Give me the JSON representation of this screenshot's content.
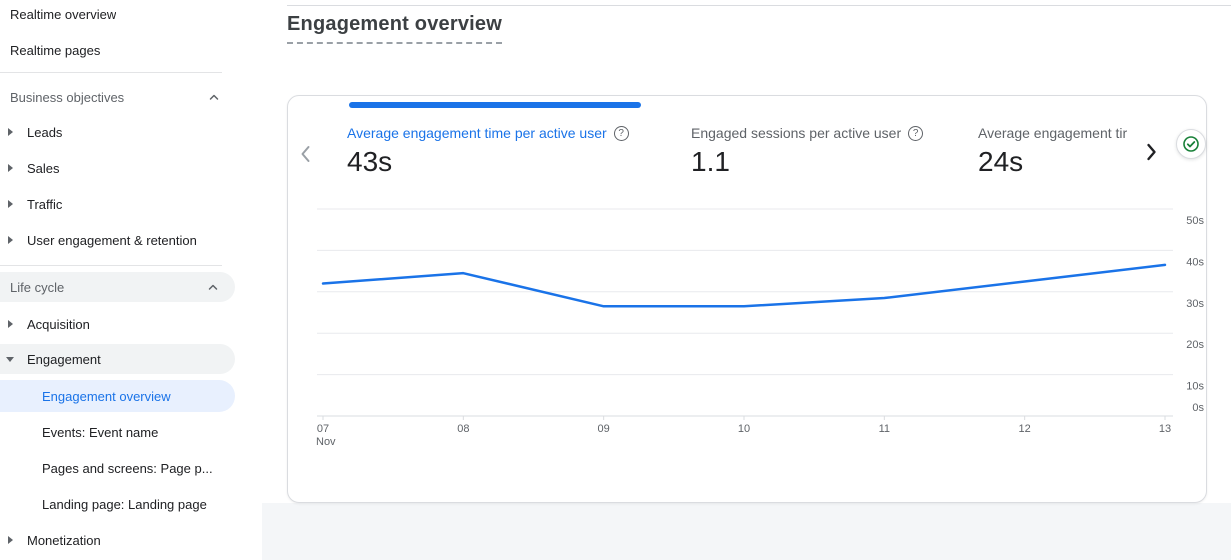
{
  "page": {
    "title": "Engagement overview"
  },
  "colors": {
    "accent_blue": "#1a73e8",
    "selected_item_bg": "#e8f0fe",
    "hover_pill_bg": "#f1f3f4",
    "chart_line": "#1a73e8",
    "status_green": "#188038"
  },
  "icons": {
    "section_collapse": "chevron-up",
    "item_collapsed": "triangle-right",
    "item_expanded": "triangle-down",
    "metric_help": "help-circle-outline",
    "carousel_prev": "chevron-left",
    "carousel_next": "chevron-right",
    "status": "check-circle-green"
  },
  "sidebar": {
    "items": [
      {
        "label": "Realtime overview",
        "type": "link"
      },
      {
        "label": "Realtime pages",
        "type": "link"
      },
      {
        "label": "Business objectives",
        "type": "section-header",
        "state": "expanded"
      },
      {
        "label": "Leads",
        "type": "expandable",
        "state": "collapsed"
      },
      {
        "label": "Sales",
        "type": "expandable",
        "state": "collapsed"
      },
      {
        "label": "Traffic",
        "type": "expandable",
        "state": "collapsed"
      },
      {
        "label": "User engagement & retention",
        "type": "expandable",
        "state": "collapsed"
      },
      {
        "label": "Life cycle",
        "type": "section-header",
        "state": "expanded"
      },
      {
        "label": "Acquisition",
        "type": "expandable",
        "state": "collapsed"
      },
      {
        "label": "Engagement",
        "type": "expandable",
        "state": "expanded"
      },
      {
        "label": "Engagement overview",
        "type": "child",
        "selected": true
      },
      {
        "label": "Events: Event name",
        "type": "child"
      },
      {
        "label": "Pages and screens: Page p...",
        "type": "child"
      },
      {
        "label": "Landing page: Landing page",
        "type": "child"
      },
      {
        "label": "Monetization",
        "type": "expandable",
        "state": "collapsed"
      }
    ]
  },
  "metrics_card": {
    "carousel": {
      "prev_enabled": false,
      "next_enabled": true
    },
    "metrics": [
      {
        "label": "Average engagement time per active user",
        "value": "43s",
        "selected": true,
        "has_help_icon": true
      },
      {
        "label": "Engaged sessions per active user",
        "value": "1.1",
        "selected": false,
        "has_help_icon": true
      },
      {
        "label": "Average engagement tir",
        "value": "24s",
        "selected": false,
        "has_help_icon": false
      }
    ]
  },
  "chart_data": {
    "type": "line",
    "title": "Average engagement time per active user over time",
    "x_labels": [
      "07",
      "08",
      "09",
      "10",
      "11",
      "12",
      "13"
    ],
    "x_sublabels": [
      "Nov",
      "",
      "",
      "",
      "",
      "",
      ""
    ],
    "series": [
      {
        "name": "Average engagement time per active user",
        "values": [
          32,
          34.5,
          26.5,
          26.5,
          28.5,
          32.5,
          36.5
        ]
      }
    ],
    "unit": "seconds",
    "y_ticks": [
      "0s",
      "10s",
      "20s",
      "30s",
      "40s",
      "50s"
    ],
    "ylim": [
      0,
      50
    ],
    "grid": true,
    "legend": "none",
    "y_axis_side": "right",
    "line_color": "#1a73e8"
  }
}
